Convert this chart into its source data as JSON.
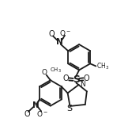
{
  "bg_color": "#ffffff",
  "line_color": "#1a1a1a",
  "line_width": 1.3,
  "font_size": 6.5,
  "fig_width": 1.43,
  "fig_height": 1.59,
  "xlim": [
    0,
    10
  ],
  "ylim": [
    0,
    11
  ]
}
